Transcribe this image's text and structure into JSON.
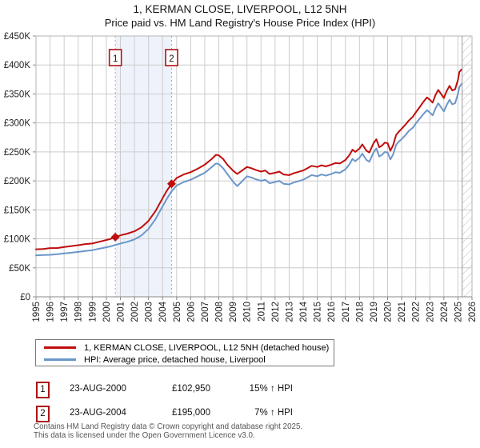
{
  "title": "1, KERMAN CLOSE, LIVERPOOL, L12 5NH",
  "subtitle": "Price paid vs. HM Land Registry's House Price Index (HPI)",
  "colors": {
    "property_line": "#c00d0d",
    "hpi_line": "#6b96c9",
    "dashed_marker_line": "#ef8a8a",
    "band_fill": "#eef3fb",
    "grid": "#cccccc",
    "axis": "#888888",
    "hatch": "#bbbbbb",
    "flag_border": "#b01212",
    "text": "#222222"
  },
  "chart_data": {
    "type": "line",
    "title": "1, KERMAN CLOSE, LIVERPOOL, L12 5NH",
    "subtitle": "Price paid vs. HM Land Registry's House Price Index (HPI)",
    "xlabel": "",
    "ylabel": "",
    "xlim": [
      1995,
      2026
    ],
    "ylim": [
      0,
      450000
    ],
    "grid": true,
    "legend_position": "below",
    "x_ticks": [
      1995,
      1996,
      1997,
      1998,
      1999,
      2000,
      2001,
      2002,
      2003,
      2004,
      2005,
      2006,
      2007,
      2008,
      2009,
      2010,
      2011,
      2012,
      2013,
      2014,
      2015,
      2016,
      2017,
      2018,
      2019,
      2020,
      2021,
      2022,
      2023,
      2024,
      2025,
      2026
    ],
    "y_ticks": [
      {
        "value": 0,
        "label": "£0"
      },
      {
        "value": 50000,
        "label": "£50K"
      },
      {
        "value": 100000,
        "label": "£100K"
      },
      {
        "value": 150000,
        "label": "£150K"
      },
      {
        "value": 200000,
        "label": "£200K"
      },
      {
        "value": 250000,
        "label": "£250K"
      },
      {
        "value": 300000,
        "label": "£300K"
      },
      {
        "value": 350000,
        "label": "£350K"
      },
      {
        "value": 400000,
        "label": "£400K"
      },
      {
        "value": 450000,
        "label": "£450K"
      }
    ],
    "series": [
      {
        "name": "1, KERMAN CLOSE, LIVERPOOL, L12 5NH (detached house)",
        "color": "#c00d0d",
        "points": [
          [
            1995.0,
            82000
          ],
          [
            1995.5,
            82500
          ],
          [
            1996.0,
            84000
          ],
          [
            1996.5,
            84000
          ],
          [
            1997.0,
            86000
          ],
          [
            1997.5,
            87500
          ],
          [
            1998.0,
            89000
          ],
          [
            1998.5,
            91000
          ],
          [
            1999.0,
            92000
          ],
          [
            1999.5,
            95000
          ],
          [
            2000.0,
            98000
          ],
          [
            2000.3,
            100000
          ],
          [
            2000.64,
            102950
          ],
          [
            2001.0,
            106000
          ],
          [
            2001.5,
            109000
          ],
          [
            2002.0,
            113000
          ],
          [
            2002.5,
            120000
          ],
          [
            2003.0,
            131000
          ],
          [
            2003.5,
            148000
          ],
          [
            2004.0,
            170000
          ],
          [
            2004.3,
            183000
          ],
          [
            2004.64,
            195000
          ],
          [
            2005.0,
            205000
          ],
          [
            2005.5,
            211000
          ],
          [
            2006.0,
            215000
          ],
          [
            2006.5,
            221000
          ],
          [
            2007.0,
            228000
          ],
          [
            2007.5,
            238000
          ],
          [
            2007.8,
            245000
          ],
          [
            2008.0,
            244000
          ],
          [
            2008.3,
            238000
          ],
          [
            2008.6,
            228000
          ],
          [
            2009.0,
            218000
          ],
          [
            2009.3,
            212000
          ],
          [
            2009.6,
            217000
          ],
          [
            2010.0,
            224000
          ],
          [
            2010.3,
            222000
          ],
          [
            2010.6,
            219000
          ],
          [
            2011.0,
            216000
          ],
          [
            2011.3,
            218000
          ],
          [
            2011.6,
            212000
          ],
          [
            2012.0,
            214000
          ],
          [
            2012.3,
            216000
          ],
          [
            2012.6,
            211000
          ],
          [
            2013.0,
            210000
          ],
          [
            2013.3,
            213000
          ],
          [
            2013.6,
            215000
          ],
          [
            2014.0,
            218000
          ],
          [
            2014.3,
            222000
          ],
          [
            2014.6,
            226000
          ],
          [
            2015.0,
            224000
          ],
          [
            2015.3,
            227000
          ],
          [
            2015.6,
            225000
          ],
          [
            2016.0,
            228000
          ],
          [
            2016.3,
            231000
          ],
          [
            2016.6,
            230000
          ],
          [
            2017.0,
            236000
          ],
          [
            2017.3,
            245000
          ],
          [
            2017.5,
            254000
          ],
          [
            2017.7,
            250000
          ],
          [
            2018.0,
            256000
          ],
          [
            2018.2,
            263000
          ],
          [
            2018.5,
            252000
          ],
          [
            2018.7,
            249000
          ],
          [
            2019.0,
            265000
          ],
          [
            2019.2,
            272000
          ],
          [
            2019.4,
            258000
          ],
          [
            2019.6,
            261000
          ],
          [
            2019.8,
            266000
          ],
          [
            2020.0,
            265000
          ],
          [
            2020.2,
            252000
          ],
          [
            2020.4,
            262000
          ],
          [
            2020.6,
            279000
          ],
          [
            2020.8,
            285000
          ],
          [
            2021.0,
            290000
          ],
          [
            2021.3,
            298000
          ],
          [
            2021.5,
            304000
          ],
          [
            2021.8,
            311000
          ],
          [
            2022.0,
            318000
          ],
          [
            2022.3,
            328000
          ],
          [
            2022.5,
            335000
          ],
          [
            2022.8,
            344000
          ],
          [
            2023.0,
            340000
          ],
          [
            2023.2,
            335000
          ],
          [
            2023.4,
            348000
          ],
          [
            2023.6,
            357000
          ],
          [
            2023.8,
            350000
          ],
          [
            2024.0,
            343000
          ],
          [
            2024.2,
            355000
          ],
          [
            2024.4,
            364000
          ],
          [
            2024.6,
            356000
          ],
          [
            2024.8,
            358000
          ],
          [
            2025.0,
            374000
          ],
          [
            2025.1,
            388000
          ],
          [
            2025.25,
            392000
          ]
        ]
      },
      {
        "name": "HPI: Average price, detached house, Liverpool",
        "color": "#6b96c9",
        "points": [
          [
            1995.0,
            71500
          ],
          [
            1995.5,
            72000
          ],
          [
            1996.0,
            72500
          ],
          [
            1996.5,
            73500
          ],
          [
            1997.0,
            75000
          ],
          [
            1997.5,
            76000
          ],
          [
            1998.0,
            77500
          ],
          [
            1998.5,
            79000
          ],
          [
            1999.0,
            80500
          ],
          [
            1999.5,
            83000
          ],
          [
            2000.0,
            85500
          ],
          [
            2000.3,
            87000
          ],
          [
            2000.64,
            89500
          ],
          [
            2001.0,
            92000
          ],
          [
            2001.5,
            95000
          ],
          [
            2002.0,
            99000
          ],
          [
            2002.5,
            106000
          ],
          [
            2003.0,
            117000
          ],
          [
            2003.5,
            134000
          ],
          [
            2004.0,
            156000
          ],
          [
            2004.3,
            169000
          ],
          [
            2004.64,
            182000
          ],
          [
            2005.0,
            192000
          ],
          [
            2005.5,
            198000
          ],
          [
            2006.0,
            202000
          ],
          [
            2006.5,
            208000
          ],
          [
            2007.0,
            214000
          ],
          [
            2007.5,
            224000
          ],
          [
            2007.8,
            230000
          ],
          [
            2008.0,
            229000
          ],
          [
            2008.3,
            222000
          ],
          [
            2008.6,
            212000
          ],
          [
            2009.0,
            199000
          ],
          [
            2009.3,
            191000
          ],
          [
            2009.6,
            198000
          ],
          [
            2010.0,
            208000
          ],
          [
            2010.3,
            206000
          ],
          [
            2010.6,
            203000
          ],
          [
            2011.0,
            200000
          ],
          [
            2011.3,
            202000
          ],
          [
            2011.6,
            196000
          ],
          [
            2012.0,
            198000
          ],
          [
            2012.3,
            200000
          ],
          [
            2012.6,
            195000
          ],
          [
            2013.0,
            194000
          ],
          [
            2013.3,
            197000
          ],
          [
            2013.6,
            199000
          ],
          [
            2014.0,
            202000
          ],
          [
            2014.3,
            206000
          ],
          [
            2014.6,
            210000
          ],
          [
            2015.0,
            208000
          ],
          [
            2015.3,
            211000
          ],
          [
            2015.6,
            209000
          ],
          [
            2016.0,
            212000
          ],
          [
            2016.3,
            215000
          ],
          [
            2016.6,
            214000
          ],
          [
            2017.0,
            220000
          ],
          [
            2017.3,
            229000
          ],
          [
            2017.5,
            238000
          ],
          [
            2017.7,
            234000
          ],
          [
            2018.0,
            240000
          ],
          [
            2018.2,
            247000
          ],
          [
            2018.5,
            236000
          ],
          [
            2018.7,
            233000
          ],
          [
            2019.0,
            249000
          ],
          [
            2019.2,
            256000
          ],
          [
            2019.4,
            242000
          ],
          [
            2019.6,
            245000
          ],
          [
            2019.8,
            250000
          ],
          [
            2020.0,
            249000
          ],
          [
            2020.2,
            237000
          ],
          [
            2020.4,
            246000
          ],
          [
            2020.6,
            262000
          ],
          [
            2020.8,
            268000
          ],
          [
            2021.0,
            272000
          ],
          [
            2021.3,
            280000
          ],
          [
            2021.5,
            286000
          ],
          [
            2021.8,
            292000
          ],
          [
            2022.0,
            299000
          ],
          [
            2022.3,
            308000
          ],
          [
            2022.5,
            314000
          ],
          [
            2022.8,
            322000
          ],
          [
            2023.0,
            318000
          ],
          [
            2023.2,
            313000
          ],
          [
            2023.4,
            325000
          ],
          [
            2023.6,
            334000
          ],
          [
            2023.8,
            327000
          ],
          [
            2024.0,
            320000
          ],
          [
            2024.2,
            331000
          ],
          [
            2024.4,
            340000
          ],
          [
            2024.6,
            332000
          ],
          [
            2024.8,
            334000
          ],
          [
            2025.0,
            350000
          ],
          [
            2025.1,
            362000
          ],
          [
            2025.25,
            367000
          ]
        ]
      }
    ],
    "markers": [
      {
        "label": "1",
        "x": 2000.64,
        "y": 102950
      },
      {
        "label": "2",
        "x": 2004.64,
        "y": 195000
      }
    ],
    "shaded_span": {
      "from": 2000.64,
      "to": 2004.64
    },
    "hatched_span": {
      "from": 2025.3,
      "to": 2026
    }
  },
  "legend": {
    "property_label": "1, KERMAN CLOSE, LIVERPOOL, L12 5NH (detached house)",
    "hpi_label": "HPI: Average price, detached house, Liverpool"
  },
  "transactions": [
    {
      "num": "1",
      "date": "23-AUG-2000",
      "price": "£102,950",
      "hpi": "15% ↑ HPI"
    },
    {
      "num": "2",
      "date": "23-AUG-2004",
      "price": "£195,000",
      "hpi": "7% ↑ HPI"
    }
  ],
  "footer": {
    "line1": "Contains HM Land Registry data © Crown copyright and database right 2025.",
    "line2": "This data is licensed under the Open Government Licence v3.0."
  }
}
